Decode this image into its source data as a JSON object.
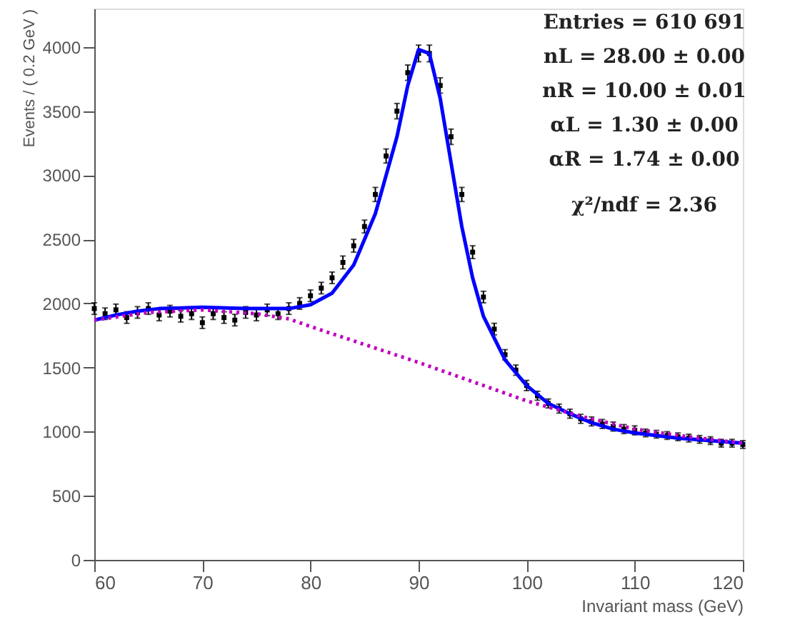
{
  "chart_data": {
    "type": "scatter",
    "xlabel": "Invariant mass  (GeV)",
    "ylabel": "Events / ( 0.2 GeV )",
    "xlim": [
      60,
      120
    ],
    "xticks": [
      60,
      70,
      80,
      90,
      100,
      110,
      120
    ],
    "ylim": [
      0,
      4300
    ],
    "yticks": [
      0,
      500,
      1000,
      1500,
      2000,
      2500,
      3000,
      3500,
      4000
    ],
    "grid": false,
    "annotations": [
      "Entries = 610 691",
      "nL = 28.00 ± 0.00",
      "nR = 10.00 ± 0.01",
      "αL = 1.30 ± 0.00",
      "αR = 1.74 ± 0.00",
      "χ²/ndf = 2.36"
    ],
    "series": [
      {
        "color": "#000000",
        "marker": "square",
        "x": [
          60,
          61,
          62,
          63,
          64,
          65,
          66,
          67,
          68,
          69,
          70,
          71,
          72,
          73,
          74,
          75,
          76,
          77,
          78,
          79,
          80,
          81,
          82,
          83,
          84,
          85,
          86,
          87,
          88,
          89,
          90,
          91,
          92,
          93,
          94,
          95,
          96,
          97,
          98,
          99,
          100,
          101,
          102,
          103,
          104,
          105,
          106,
          107,
          108,
          109,
          110,
          111,
          112,
          113,
          114,
          115,
          116,
          117,
          118,
          119,
          120
        ],
        "values": [
          1960,
          1920,
          1950,
          1890,
          1930,
          1960,
          1910,
          1940,
          1900,
          1920,
          1850,
          1920,
          1890,
          1870,
          1930,
          1910,
          1950,
          1920,
          1960,
          2000,
          2060,
          2120,
          2200,
          2320,
          2450,
          2600,
          2850,
          3150,
          3500,
          3800,
          3950,
          3950,
          3700,
          3300,
          2850,
          2400,
          2050,
          1800,
          1600,
          1480,
          1360,
          1280,
          1220,
          1180,
          1140,
          1100,
          1080,
          1060,
          1040,
          1020,
          1010,
          990,
          980,
          970,
          960,
          950,
          940,
          930,
          910,
          910,
          900
        ],
        "errors": [
          45,
          45,
          45,
          45,
          45,
          45,
          45,
          45,
          45,
          45,
          45,
          45,
          45,
          45,
          45,
          45,
          45,
          45,
          45,
          45,
          45,
          45,
          45,
          50,
          50,
          50,
          55,
          55,
          60,
          60,
          65,
          65,
          60,
          60,
          55,
          50,
          45,
          45,
          40,
          40,
          40,
          35,
          35,
          35,
          35,
          35,
          35,
          35,
          35,
          35,
          35,
          30,
          30,
          30,
          30,
          30,
          30,
          30,
          30,
          30,
          30
        ]
      },
      {
        "type": "line",
        "color": "#0000ff",
        "line_style": "solid",
        "marker": "none",
        "x": [
          60,
          62,
          64,
          66,
          70,
          74,
          78,
          80,
          82,
          84,
          86,
          88,
          89,
          90,
          91,
          92,
          93,
          94,
          95,
          96,
          98,
          100,
          102,
          104,
          106,
          108,
          110,
          114,
          117,
          120
        ],
        "values": [
          1870,
          1910,
          1940,
          1960,
          1970,
          1960,
          1960,
          1990,
          2080,
          2300,
          2700,
          3300,
          3700,
          3980,
          3950,
          3600,
          3100,
          2600,
          2200,
          1900,
          1560,
          1360,
          1220,
          1140,
          1070,
          1020,
          990,
          950,
          930,
          910
        ]
      },
      {
        "type": "line",
        "color": "#c000c0",
        "line_style": "dotted",
        "marker": "none",
        "x": [
          60,
          65,
          70,
          75,
          78,
          80,
          85,
          90,
          95,
          100,
          105,
          110,
          115,
          120
        ],
        "values": [
          1870,
          1930,
          1950,
          1920,
          1880,
          1820,
          1680,
          1540,
          1390,
          1240,
          1120,
          1020,
          960,
          910
        ]
      }
    ]
  }
}
